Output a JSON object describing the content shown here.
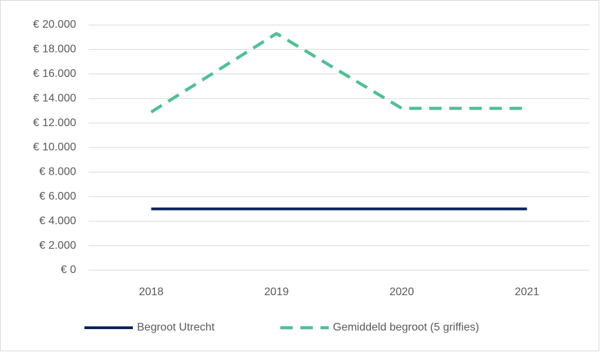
{
  "chart_data": {
    "type": "line",
    "categories": [
      "2018",
      "2019",
      "2020",
      "2021"
    ],
    "series": [
      {
        "name": "Begroot Utrecht",
        "color": "#0b2559",
        "dash": false,
        "values": [
          5000,
          5000,
          5000,
          5000
        ]
      },
      {
        "name": "Gemiddeld begroot (5 griffies)",
        "color": "#4fc095",
        "dash": true,
        "values": [
          12900,
          19300,
          13200,
          13200
        ]
      }
    ],
    "ylim": [
      0,
      20000
    ],
    "yticks": [
      {
        "value": 0,
        "label": "€ 0"
      },
      {
        "value": 2000,
        "label": "€ 2.000"
      },
      {
        "value": 4000,
        "label": "€ 4.000"
      },
      {
        "value": 6000,
        "label": "€ 6.000"
      },
      {
        "value": 8000,
        "label": "€ 8.000"
      },
      {
        "value": 10000,
        "label": "€ 10.000"
      },
      {
        "value": 12000,
        "label": "€ 12.000"
      },
      {
        "value": 14000,
        "label": "€ 14.000"
      },
      {
        "value": 16000,
        "label": "€ 16.000"
      },
      {
        "value": 18000,
        "label": "€ 18.000"
      },
      {
        "value": 20000,
        "label": "€ 20.000"
      }
    ],
    "grid": true,
    "legend": "bottom"
  }
}
